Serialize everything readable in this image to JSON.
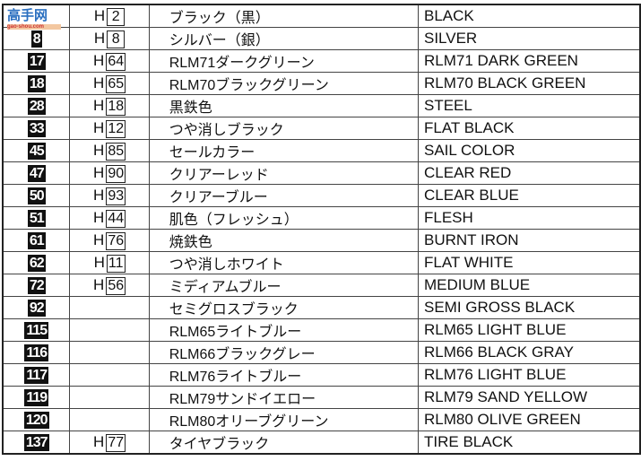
{
  "watermark": {
    "text": "高手网",
    "url_text": "gao-shou.com"
  },
  "rows": [
    {
      "num": "",
      "h": "2",
      "jp": "ブラック（黒）",
      "en": "BLACK"
    },
    {
      "num": "8",
      "h": "8",
      "jp": "シルバー（銀）",
      "en": "SILVER"
    },
    {
      "num": "17",
      "h": "64",
      "jp": "RLM71ダークグリーン",
      "en": "RLM71 DARK GREEN"
    },
    {
      "num": "18",
      "h": "65",
      "jp": "RLM70ブラックグリーン",
      "en": "RLM70 BLACK GREEN"
    },
    {
      "num": "28",
      "h": "18",
      "jp": "黒鉄色",
      "en": "STEEL"
    },
    {
      "num": "33",
      "h": "12",
      "jp": "つや消しブラック",
      "en": "FLAT BLACK"
    },
    {
      "num": "45",
      "h": "85",
      "jp": "セールカラー",
      "en": "SAIL COLOR"
    },
    {
      "num": "47",
      "h": "90",
      "jp": "クリアーレッド",
      "en": "CLEAR RED"
    },
    {
      "num": "50",
      "h": "93",
      "jp": "クリアーブルー",
      "en": "CLEAR BLUE"
    },
    {
      "num": "51",
      "h": "44",
      "jp": "肌色（フレッシュ）",
      "en": "FLESH"
    },
    {
      "num": "61",
      "h": "76",
      "jp": "焼鉄色",
      "en": "BURNT IRON"
    },
    {
      "num": "62",
      "h": "11",
      "jp": "つや消しホワイト",
      "en": "FLAT WHITE"
    },
    {
      "num": "72",
      "h": "56",
      "jp": "ミディアムブルー",
      "en": "MEDIUM BLUE"
    },
    {
      "num": "92",
      "h": "",
      "jp": "セミグロスブラック",
      "en": "SEMI GROSS BLACK"
    },
    {
      "num": "115",
      "h": "",
      "jp": "RLM65ライトブルー",
      "en": "RLM65 LIGHT BLUE"
    },
    {
      "num": "116",
      "h": "",
      "jp": "RLM66ブラックグレー",
      "en": "RLM66 BLACK GRAY"
    },
    {
      "num": "117",
      "h": "",
      "jp": "RLM76ライトブルー",
      "en": "RLM76 LIGHT BLUE"
    },
    {
      "num": "119",
      "h": "",
      "jp": "RLM79サンドイエロー",
      "en": "RLM79 SAND YELLOW"
    },
    {
      "num": "120",
      "h": "",
      "jp": "RLM80オリーブグリーン",
      "en": "RLM80 OLIVE GREEN"
    },
    {
      "num": "137",
      "h": "77",
      "jp": "タイヤブラック",
      "en": "TIRE BLACK"
    }
  ],
  "h_prefix": "H"
}
